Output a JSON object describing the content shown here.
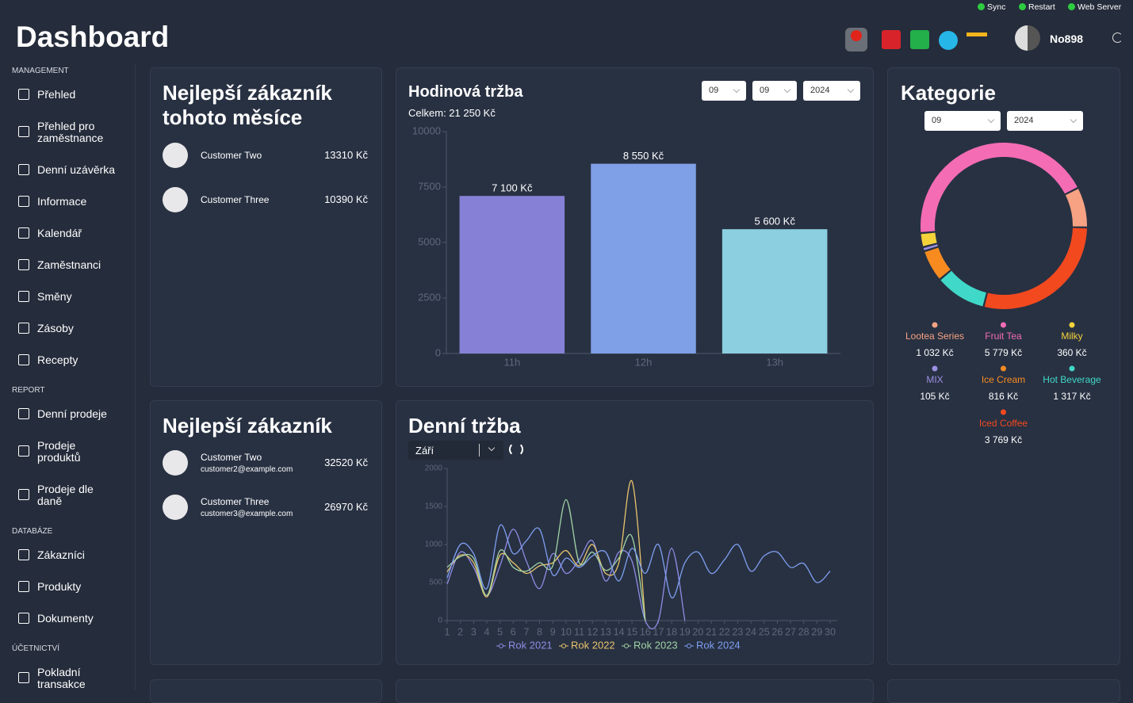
{
  "header": {
    "title": "Dashboard",
    "status": [
      "Sync",
      "Restart",
      "Web Server"
    ],
    "user": "No898"
  },
  "sidebar": [
    {
      "title": "MANAGEMENT",
      "items": [
        "Přehled",
        "Přehled pro zaměstnance",
        "Denní uzávěrka",
        "Informace",
        "Kalendář",
        "Zaměstnanci",
        "Směny",
        "Zásoby",
        "Recepty"
      ]
    },
    {
      "title": "REPORT",
      "items": [
        "Denní prodeje",
        "Prodeje produktů",
        "Prodeje dle daně"
      ]
    },
    {
      "title": "DATABÁZE",
      "items": [
        "Zákazníci",
        "Produkty",
        "Dokumenty"
      ]
    },
    {
      "title": "ÚČETNICTVÍ",
      "items": [
        "Pokladní transakce"
      ]
    }
  ],
  "top_customers_month": {
    "title": "Nejlepší zákazník tohoto měsíce",
    "rows": [
      {
        "name": "Customer Two",
        "amount": "13310 Kč"
      },
      {
        "name": "Customer Three",
        "amount": "10390 Kč"
      }
    ]
  },
  "top_customers": {
    "title": "Nejlepší zákazník",
    "rows": [
      {
        "name": "Customer Two",
        "email": "customer2@example.com",
        "amount": "32520 Kč"
      },
      {
        "name": "Customer Three",
        "email": "customer3@example.com",
        "amount": "26970 Kč"
      }
    ]
  },
  "chart_data": [
    {
      "type": "bar",
      "title": "Hodinová tržba",
      "subtitle": "Celkem: 21 250 Kč",
      "filters": [
        "09",
        "09",
        "2024"
      ],
      "categories": [
        "11h",
        "12h",
        "13h"
      ],
      "values": [
        7100,
        8550,
        5600
      ],
      "value_labels": [
        "7 100 Kč",
        "8 550 Kč",
        "5 600 Kč"
      ],
      "colors": [
        "#8681d6",
        "#7f9fe6",
        "#8bcfe0"
      ],
      "ylim": [
        0,
        10000
      ],
      "yticks": [
        0,
        2500,
        5000,
        7500,
        10000
      ]
    },
    {
      "type": "line",
      "title": "Denní tržba",
      "filter": "Září",
      "x": [
        1,
        2,
        3,
        4,
        5,
        6,
        7,
        8,
        9,
        10,
        11,
        12,
        13,
        14,
        15,
        16,
        17,
        18,
        19,
        20,
        21,
        22,
        23,
        24,
        25,
        26,
        27,
        28,
        29,
        30
      ],
      "xlim": [
        1,
        30
      ],
      "xticks": [
        1,
        2,
        3,
        4,
        5,
        6,
        7,
        8,
        9,
        10,
        11,
        12,
        13,
        14,
        15,
        16,
        17,
        18,
        19,
        20,
        21,
        22,
        23,
        24,
        25,
        26,
        27,
        28,
        29,
        30
      ],
      "ylim": [
        0,
        2000
      ],
      "yticks": [
        0,
        500,
        1000,
        1500,
        2000
      ],
      "series": [
        {
          "name": "Rok 2021",
          "color": "#8f8ce6",
          "values": [
            480,
            900,
            700,
            330,
            720,
            1200,
            780,
            420,
            880,
            620,
            800,
            1050,
            520,
            900,
            780,
            0,
            0,
            950,
            0,
            null,
            null,
            null,
            null,
            null,
            null,
            null,
            null,
            null,
            null,
            null
          ]
        },
        {
          "name": "Rok 2022",
          "color": "#e8c46c",
          "values": [
            640,
            860,
            760,
            310,
            860,
            760,
            620,
            720,
            760,
            920,
            720,
            1000,
            620,
            760,
            1830,
            0,
            null,
            null,
            null,
            null,
            null,
            null,
            null,
            null,
            null,
            null,
            null,
            null,
            null,
            null
          ]
        },
        {
          "name": "Rok 2023",
          "color": "#a2d4a6",
          "values": [
            700,
            840,
            820,
            330,
            920,
            700,
            650,
            760,
            720,
            1590,
            760,
            900,
            660,
            820,
            1100,
            0,
            null,
            null,
            null,
            null,
            null,
            null,
            null,
            null,
            null,
            null,
            null,
            null,
            null,
            null
          ]
        },
        {
          "name": "Rok 2024",
          "color": "#7f9ff2",
          "values": [
            560,
            1000,
            880,
            420,
            1250,
            880,
            1050,
            1200,
            600,
            820,
            700,
            850,
            900,
            520,
            950,
            620,
            1000,
            300,
            760,
            900,
            620,
            800,
            1000,
            650,
            850,
            900,
            700,
            750,
            500,
            650
          ]
        }
      ]
    },
    {
      "type": "pie",
      "title": "Kategorie",
      "filters": [
        "09",
        "2024"
      ],
      "categories": [
        "Fruit Tea",
        "Lootea Series",
        "Iced Coffee",
        "Hot Beverage",
        "Ice Cream",
        "MIX",
        "Milky"
      ],
      "values": [
        5779,
        1032,
        3769,
        1317,
        816,
        105,
        360
      ],
      "value_labels": [
        "5 779 Kč",
        "1 032 Kč",
        "3 769 Kč",
        "1 317 Kč",
        "816 Kč",
        "105 Kč",
        "360 Kč"
      ],
      "colors": [
        "#f46cb4",
        "#f6a283",
        "#f3491f",
        "#40d8c8",
        "#f78b20",
        "#9c90e2",
        "#f4d23a"
      ]
    }
  ]
}
